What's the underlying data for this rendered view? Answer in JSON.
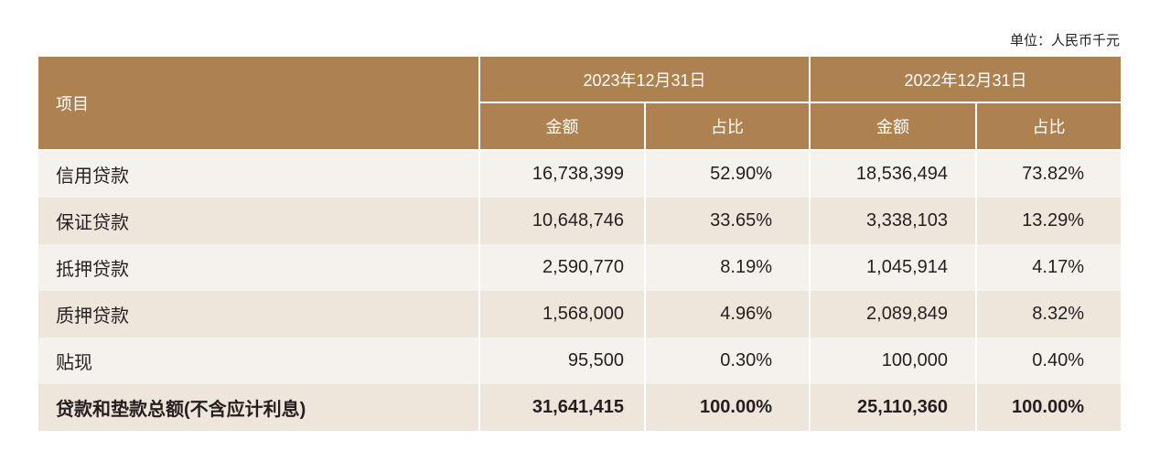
{
  "unit_label": "单位：人民币千元",
  "header": {
    "item": "项目",
    "period_2023": "2023年12月31日",
    "period_2022": "2022年12月31日",
    "amount": "金额",
    "ratio": "占比"
  },
  "rows": [
    {
      "label": "信用贷款",
      "amt_2023": "16,738,399",
      "pct_2023": "52.90%",
      "amt_2022": "18,536,494",
      "pct_2022": "73.82%"
    },
    {
      "label": "保证贷款",
      "amt_2023": "10,648,746",
      "pct_2023": "33.65%",
      "amt_2022": "3,338,103",
      "pct_2022": "13.29%"
    },
    {
      "label": "抵押贷款",
      "amt_2023": "2,590,770",
      "pct_2023": "8.19%",
      "amt_2022": "1,045,914",
      "pct_2022": "4.17%"
    },
    {
      "label": "质押贷款",
      "amt_2023": "1,568,000",
      "pct_2023": "4.96%",
      "amt_2022": "2,089,849",
      "pct_2022": "8.32%"
    },
    {
      "label": "贴现",
      "amt_2023": "95,500",
      "pct_2023": "0.30%",
      "amt_2022": "100,000",
      "pct_2022": "0.40%"
    }
  ],
  "total": {
    "label": "贷款和垫款总额(不含应计利息)",
    "amt_2023": "31,641,415",
    "pct_2023": "100.00%",
    "amt_2022": "25,110,360",
    "pct_2022": "100.00%"
  },
  "colors": {
    "header_bg": "#ad8250",
    "row_light": "#f5f2ee",
    "row_dark": "#efe6db"
  }
}
